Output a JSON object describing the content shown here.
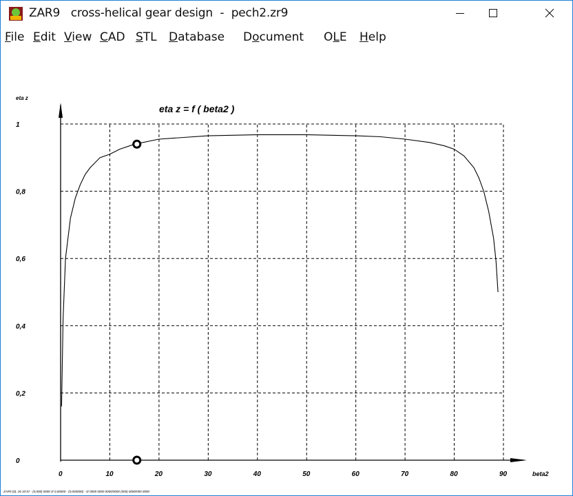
{
  "window": {
    "title": "ZAR9   cross-helical gear design  -  pech2.zr9",
    "controls": [
      "minimize",
      "maximize",
      "close"
    ]
  },
  "menu": {
    "items": [
      {
        "label": "File",
        "accel": "F"
      },
      {
        "label": "Edit",
        "accel": "E"
      },
      {
        "label": "View",
        "accel": "V"
      },
      {
        "label": "CAD",
        "accel": "C"
      },
      {
        "label": "STL",
        "accel": "S"
      },
      {
        "label": "Database",
        "accel": "D"
      },
      {
        "label": "Document",
        "accel": "o"
      },
      {
        "label": "OLE",
        "accel": "L"
      },
      {
        "label": "Help",
        "accel": "H"
      }
    ]
  },
  "chart_data": {
    "type": "line",
    "title": "eta z = f ( beta2 )",
    "xlabel": "beta2",
    "ylabel": "eta z",
    "xlim": [
      0,
      90
    ],
    "ylim": [
      0,
      1
    ],
    "x_ticks": [
      "0",
      "10",
      "20",
      "30",
      "40",
      "50",
      "60",
      "70",
      "80",
      "90"
    ],
    "y_ticks": [
      "0",
      "0,2",
      "0,4",
      "0,6",
      "0,8",
      "1"
    ],
    "grid": true,
    "series": [
      {
        "x": [
          0.2,
          0.5,
          1,
          2,
          3,
          4,
          5,
          6,
          8,
          10,
          12,
          15,
          20,
          25,
          30,
          40,
          50,
          60,
          65,
          70,
          75,
          78,
          80,
          82,
          84,
          85,
          86,
          87,
          88,
          88.5,
          88.9
        ],
        "y": [
          0.16,
          0.42,
          0.6,
          0.72,
          0.78,
          0.82,
          0.85,
          0.87,
          0.9,
          0.91,
          0.925,
          0.94,
          0.955,
          0.96,
          0.965,
          0.968,
          0.968,
          0.965,
          0.962,
          0.955,
          0.945,
          0.935,
          0.925,
          0.905,
          0.87,
          0.84,
          0.8,
          0.74,
          0.66,
          0.59,
          0.5
        ]
      }
    ],
    "markers": [
      {
        "x": 15.5,
        "y": 0.94
      },
      {
        "x": 15.5,
        "y": 0
      }
    ],
    "footer_text": "ZAR9 (0), 26 10:57 - (0,000) 0000 3/ 0,00000 - (0,000000) - 0/ 0000 0000 0000/0000 (000) 0000/000 0000"
  }
}
